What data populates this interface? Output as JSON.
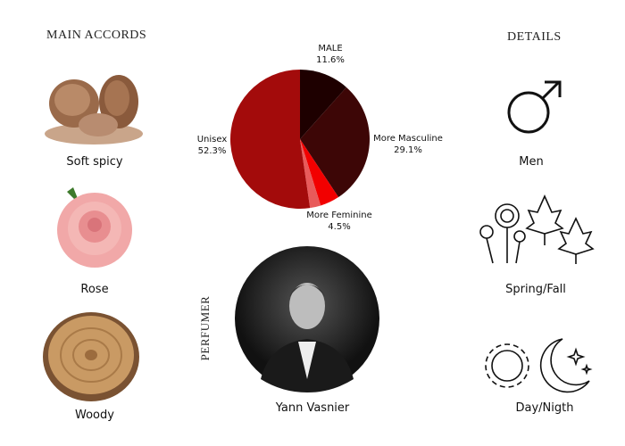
{
  "headings": {
    "main_accords": "MAIN ACCORDS",
    "details": "DETAILS",
    "perfumer": "PERFUMER"
  },
  "accords": [
    {
      "label": "Soft spicy",
      "icon": "nutmeg-image"
    },
    {
      "label": "Rose",
      "icon": "rose-image"
    },
    {
      "label": "Woody",
      "icon": "wood-slice-image"
    }
  ],
  "details": [
    {
      "label": "Men",
      "icon": "male-symbol-icon"
    },
    {
      "label": "Spring/Fall",
      "icon": "flowers-leaves-icon"
    },
    {
      "label": "Day/Nigth",
      "icon": "sun-moon-icon"
    }
  ],
  "perfumer": {
    "name": "Yann Vasnier"
  },
  "chart_data": {
    "type": "pie",
    "slices": [
      {
        "name": "MALE",
        "value": 11.6,
        "label": "11.6%",
        "color": "#1e0000"
      },
      {
        "name": "More Masculine",
        "value": 29.1,
        "label": "29.1%",
        "color": "#3d0606"
      },
      {
        "name": "More Feminine",
        "value": 4.5,
        "label": "4.5%",
        "color": "#f20000"
      },
      {
        "name": "",
        "value": 2.5,
        "label": "",
        "color": "#e85b5b"
      },
      {
        "name": "Unisex",
        "value": 52.3,
        "label": "52.3%",
        "color": "#a30b0b"
      }
    ]
  }
}
